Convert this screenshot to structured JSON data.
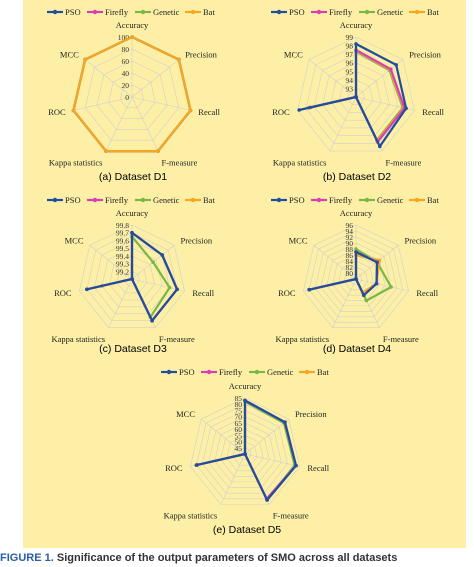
{
  "legend": [
    {
      "name": "PSO",
      "color": "#1f4e9e"
    },
    {
      "name": "Firefly",
      "color": "#d63fb8"
    },
    {
      "name": "Genetic",
      "color": "#7ab648"
    },
    {
      "name": "Bat",
      "color": "#f5a623"
    }
  ],
  "chart_data": [
    {
      "type": "radar",
      "caption": "(a) Dataset D1",
      "axes": [
        "Accuracy",
        "Precision",
        "Recall",
        "F-measure",
        "Kappa statistics",
        "ROC",
        "MCC"
      ],
      "ticks": [
        "100",
        "80",
        "60",
        "40",
        "20",
        "0"
      ],
      "range": [
        0,
        100
      ],
      "series": [
        {
          "name": "PSO",
          "values": [
            100,
            100,
            100,
            100,
            100,
            100,
            100
          ]
        },
        {
          "name": "Firefly",
          "values": [
            100,
            100,
            100,
            100,
            100,
            100,
            100
          ]
        },
        {
          "name": "Genetic",
          "values": [
            100,
            100,
            100,
            100,
            100,
            100,
            100
          ]
        },
        {
          "name": "Bat",
          "values": [
            100,
            100,
            100,
            100,
            100,
            100,
            100
          ]
        }
      ]
    },
    {
      "type": "radar",
      "caption": "(b) Dataset D2",
      "axes": [
        "Accuracy",
        "Precision",
        "Recall",
        "F-measure",
        "Kappa statistics",
        "ROC",
        "MCC"
      ],
      "ticks": [
        "99",
        "98",
        "97",
        "96",
        "95",
        "94",
        "93"
      ],
      "range": [
        92,
        99
      ],
      "series": [
        {
          "name": "PSO",
          "values": [
            98.2,
            98.0,
            98.0,
            98.4,
            92,
            98.8,
            92
          ]
        },
        {
          "name": "Firefly",
          "values": [
            97.5,
            97.2,
            97.8,
            97.8,
            92,
            97.6,
            92
          ]
        },
        {
          "name": "Genetic",
          "values": [
            97.3,
            97.0,
            97.6,
            97.6,
            92,
            97.4,
            92
          ]
        },
        {
          "name": "Bat",
          "values": [
            97.4,
            97.1,
            97.7,
            97.7,
            92,
            97.5,
            92
          ]
        }
      ]
    },
    {
      "type": "radar",
      "caption": "(c) Dataset D3",
      "axes": [
        "Accuracy",
        "Precision",
        "Recall",
        "F-measure",
        "Kappa statistics",
        "ROC",
        "MCC"
      ],
      "ticks": [
        "99.8",
        "99.7",
        "99.6",
        "99.5",
        "99.4",
        "99.3",
        "99.2"
      ],
      "range": [
        99.1,
        99.8
      ],
      "series": [
        {
          "name": "PSO",
          "values": [
            99.7,
            99.6,
            99.7,
            99.7,
            99.1,
            99.7,
            99.1
          ]
        },
        {
          "name": "Firefly",
          "values": [
            99.7,
            99.6,
            99.7,
            99.7,
            99.1,
            99.7,
            99.1
          ]
        },
        {
          "name": "Genetic",
          "values": [
            99.65,
            99.45,
            99.6,
            99.65,
            99.1,
            99.5,
            99.1
          ]
        },
        {
          "name": "Bat",
          "values": [
            99.7,
            99.6,
            99.7,
            99.7,
            99.1,
            99.7,
            99.1
          ]
        }
      ]
    },
    {
      "type": "radar",
      "caption": "(d) Dataset D4",
      "axes": [
        "Accuracy",
        "Precision",
        "Recall",
        "F-measure",
        "Kappa statistics",
        "ROC",
        "MCC"
      ],
      "ticks": [
        "96",
        "94",
        "92",
        "90",
        "88",
        "86",
        "84",
        "82",
        "80"
      ],
      "range": [
        78,
        96
      ],
      "series": [
        {
          "name": "PSO",
          "values": [
            87,
            87,
            85,
            84,
            78,
            94,
            78
          ]
        },
        {
          "name": "Firefly",
          "values": [
            87,
            87,
            85,
            84,
            78,
            94,
            78
          ]
        },
        {
          "name": "Genetic",
          "values": [
            88,
            87,
            90,
            86,
            78,
            94,
            78
          ]
        },
        {
          "name": "Bat",
          "values": [
            86,
            88,
            85,
            83,
            78,
            94,
            78
          ]
        }
      ]
    },
    {
      "type": "radar",
      "caption": "(e) Dataset D5",
      "axes": [
        "Accuracy",
        "Precision",
        "Recall",
        "F-measure",
        "Kappa statistics",
        "ROC",
        "MCC"
      ],
      "ticks": [
        "85",
        "80",
        "75",
        "70",
        "65",
        "60",
        "55",
        "50",
        "45"
      ],
      "range": [
        40,
        85
      ],
      "series": [
        {
          "name": "PSO",
          "values": [
            83,
            81,
            82,
            81,
            40,
            80,
            40
          ]
        },
        {
          "name": "Firefly",
          "values": [
            83,
            81,
            82,
            80,
            40,
            80,
            40
          ]
        },
        {
          "name": "Genetic",
          "values": [
            82,
            80,
            81,
            81,
            40,
            79,
            40
          ]
        },
        {
          "name": "Bat",
          "values": [
            83,
            81,
            82,
            81,
            40,
            80,
            40
          ]
        }
      ]
    }
  ],
  "figure_caption": {
    "label": "FIGURE 1.",
    "text": "Significance of the output parameters of SMO across all datasets"
  }
}
